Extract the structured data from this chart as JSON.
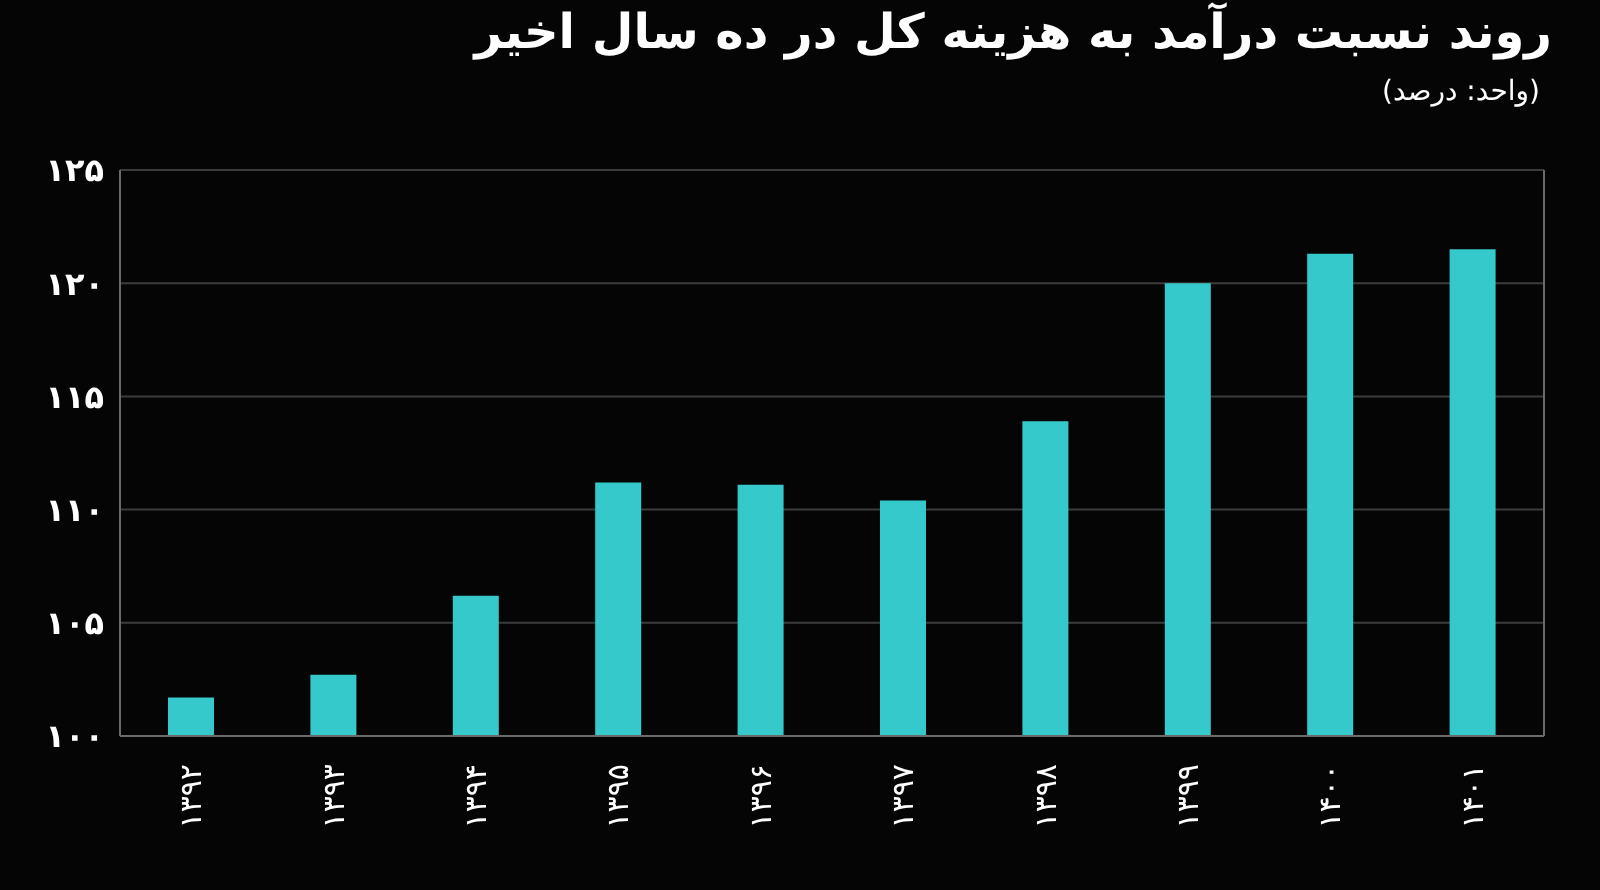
{
  "chart_data": {
    "type": "bar",
    "title": "روند نسبت درآمد به هزینه کل در ده سال اخیر",
    "subtitle": "(واحد: درصد)",
    "categories": [
      "۱۳۹۲",
      "۱۳۹۳",
      "۱۳۹۴",
      "۱۳۹۵",
      "۱۳۹۶",
      "۱۳۹۷",
      "۱۳۹۸",
      "۱۳۹۹",
      "۱۴۰۰",
      "۱۴۰۱"
    ],
    "values": [
      101.7,
      102.7,
      106.2,
      111.2,
      111.1,
      110.4,
      113.9,
      120.0,
      121.3,
      121.5
    ],
    "color": "#35c9cb",
    "ylim": [
      100,
      125
    ],
    "yticks": [
      {
        "value": 100,
        "label": "۱۰۰"
      },
      {
        "value": 105,
        "label": "۱۰۵"
      },
      {
        "value": 110,
        "label": "۱۱۰"
      },
      {
        "value": 115,
        "label": "۱۱۵"
      },
      {
        "value": 120,
        "label": "۱۲۰"
      },
      {
        "value": 125,
        "label": "۱۲۵"
      }
    ],
    "grid": "y"
  }
}
